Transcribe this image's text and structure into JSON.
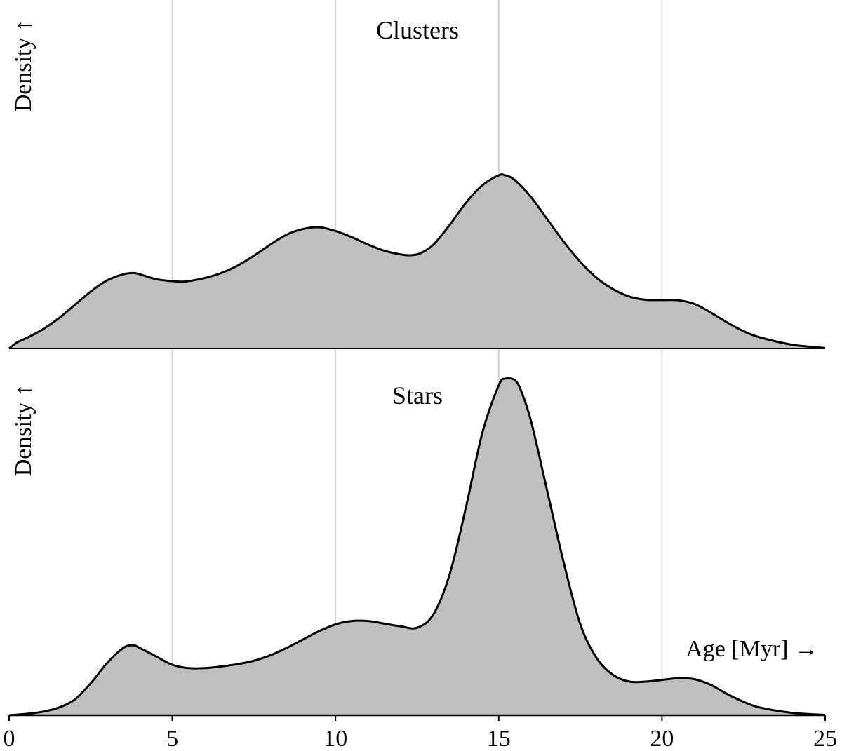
{
  "chart_data": [
    {
      "type": "area",
      "title": "Clusters",
      "xlabel": "",
      "ylabel": "Density ↑",
      "xlim": [
        0,
        25
      ],
      "y_ticks_shown": false,
      "grid_x": [
        5,
        10,
        15,
        20
      ],
      "x": [
        0,
        0.25,
        0.5,
        1,
        1.5,
        2,
        2.5,
        3,
        3.5,
        3.8,
        4,
        4.5,
        5,
        5.3,
        5.5,
        6,
        6.5,
        7,
        7.5,
        8,
        8.5,
        9,
        9.5,
        10,
        10.5,
        11,
        11.5,
        12,
        12.3,
        12.6,
        13,
        13.5,
        14,
        14.5,
        15,
        15.2,
        15.5,
        16,
        16.5,
        17,
        17.5,
        18,
        18.5,
        19,
        19.5,
        20,
        20.5,
        21,
        21.5,
        22,
        22.5,
        23,
        24,
        25
      ],
      "values": [
        0.0,
        0.025,
        0.04,
        0.075,
        0.12,
        0.175,
        0.23,
        0.275,
        0.3,
        0.305,
        0.3,
        0.28,
        0.272,
        0.27,
        0.272,
        0.285,
        0.305,
        0.335,
        0.375,
        0.42,
        0.46,
        0.483,
        0.49,
        0.475,
        0.45,
        0.42,
        0.395,
        0.38,
        0.377,
        0.385,
        0.42,
        0.5,
        0.59,
        0.66,
        0.7,
        0.7,
        0.68,
        0.61,
        0.52,
        0.43,
        0.35,
        0.285,
        0.24,
        0.21,
        0.197,
        0.196,
        0.195,
        0.18,
        0.145,
        0.105,
        0.07,
        0.045,
        0.015,
        0.002
      ]
    },
    {
      "type": "area",
      "title": "Stars",
      "xlabel": "Age [Myr] →",
      "ylabel": "Density ↑",
      "xlim": [
        0,
        25
      ],
      "y_ticks_shown": false,
      "x_ticks": [
        0,
        5,
        10,
        15,
        20,
        25
      ],
      "grid_x": [
        5,
        10,
        15,
        20
      ],
      "x": [
        0,
        0.5,
        1,
        1.5,
        2,
        2.5,
        3,
        3.5,
        3.8,
        4,
        4.5,
        5,
        5.5,
        6,
        6.5,
        7,
        7.5,
        8,
        8.5,
        9,
        9.5,
        10,
        10.5,
        11,
        11.5,
        12,
        12.5,
        13,
        13.5,
        14,
        14.5,
        15,
        15.2,
        15.5,
        15.7,
        16,
        16.5,
        17,
        17.5,
        18,
        18.5,
        19,
        19.5,
        20,
        20.5,
        21,
        21.5,
        22,
        22.5,
        23,
        24,
        25
      ],
      "values": [
        0.0,
        0.004,
        0.01,
        0.022,
        0.046,
        0.095,
        0.155,
        0.2,
        0.208,
        0.2,
        0.175,
        0.15,
        0.14,
        0.14,
        0.145,
        0.152,
        0.162,
        0.178,
        0.2,
        0.225,
        0.25,
        0.27,
        0.28,
        0.28,
        0.272,
        0.264,
        0.26,
        0.3,
        0.42,
        0.62,
        0.84,
        0.98,
        1.0,
        0.995,
        0.96,
        0.87,
        0.66,
        0.45,
        0.27,
        0.17,
        0.12,
        0.1,
        0.1,
        0.105,
        0.11,
        0.107,
        0.09,
        0.063,
        0.04,
        0.023,
        0.007,
        0.001
      ]
    }
  ]
}
